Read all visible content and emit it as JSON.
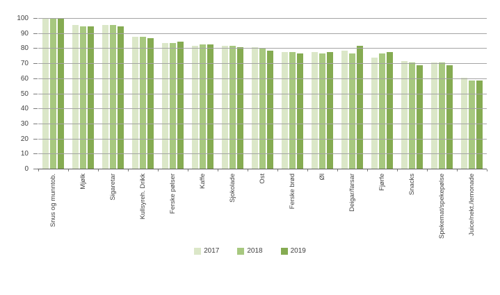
{
  "chart_data": {
    "type": "bar",
    "title": "",
    "xlabel": "",
    "ylabel": "",
    "ylim": [
      0,
      100
    ],
    "ytick_step": 10,
    "grid": true,
    "legend_position": "bottom",
    "categories": [
      "Snus og munntob.",
      "Mjølk",
      "Sigaretar",
      "Kullsyreh. Drikk",
      "Ferske pølser",
      "Kaffe",
      "Sjokolade",
      "Ost",
      "Ferske brød",
      "Øl",
      "Deigar/farsar",
      "Fjørfe",
      "Snacks",
      "Spekemat/spekepølse",
      "Juice/nekt./lemonade"
    ],
    "series": [
      {
        "name": "2017",
        "color": "#dbe7c8",
        "values": [
          100,
          96,
          96,
          88,
          84,
          82,
          82,
          81,
          78,
          78,
          79,
          74,
          72,
          71,
          61
        ]
      },
      {
        "name": "2018",
        "color": "#a7c87f",
        "values": [
          100,
          95,
          96,
          88,
          84,
          83,
          82,
          80,
          78,
          77,
          77,
          77,
          71,
          71,
          59
        ]
      },
      {
        "name": "2019",
        "color": "#85ab52",
        "values": [
          100,
          95,
          95,
          87,
          85,
          83,
          81,
          79,
          77,
          78,
          82,
          78,
          69,
          69,
          59
        ]
      }
    ],
    "colors": {
      "gridline": "#a3a3a3",
      "axis": "#595959",
      "tick": "#7a7a7a",
      "text": "#404040",
      "background": "#ffffff"
    }
  }
}
